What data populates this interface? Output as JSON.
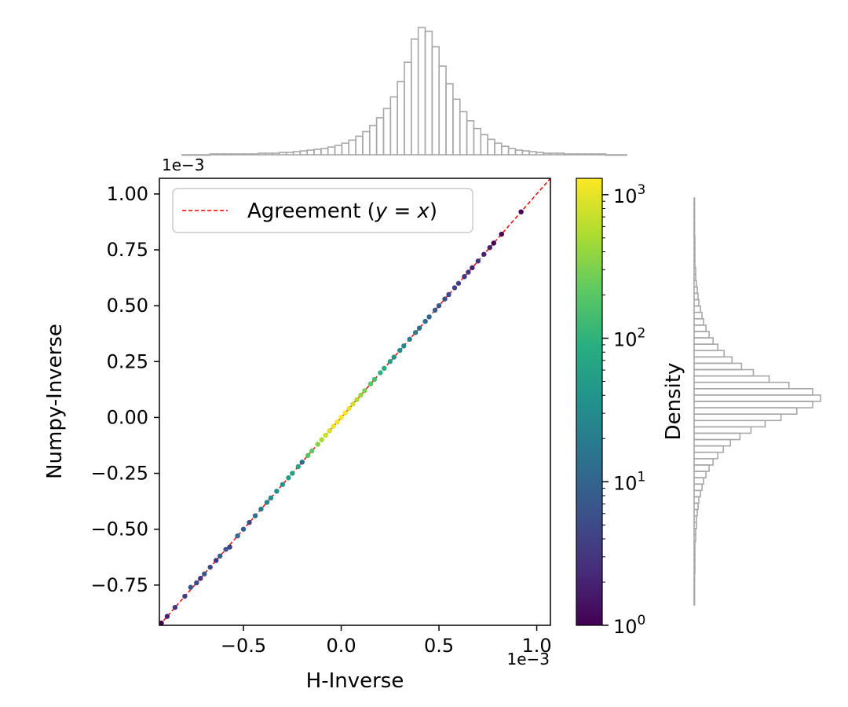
{
  "chart_data": {
    "type": "scatter",
    "xlabel": "H-Inverse",
    "ylabel": "Numpy-Inverse",
    "x_offset_label": "1e−3",
    "y_offset_label": "1e−3",
    "xlim": [
      -0.93,
      1.07
    ],
    "ylim": [
      -0.93,
      1.07
    ],
    "x_ticks": [
      -0.5,
      0.0,
      0.5,
      1.0
    ],
    "x_tick_labels": [
      "−0.5",
      "0.0",
      "0.5",
      "1.0"
    ],
    "y_ticks": [
      -0.75,
      -0.5,
      -0.25,
      0.0,
      0.25,
      0.5,
      0.75,
      1.0
    ],
    "y_tick_labels": [
      "−0.75",
      "−0.50",
      "−0.25",
      "0.00",
      "0.25",
      "0.50",
      "0.75",
      "1.00"
    ],
    "legend": {
      "label": "Agreement (y = x)",
      "label_prefix": "Agreement (",
      "label_var": "y",
      "label_eq": " = ",
      "label_var2": "x",
      "label_suffix": ")",
      "color": "#ff0000",
      "placement": "upper-left"
    },
    "reference_line": {
      "slope": 1,
      "intercept": 0,
      "style": "dashed",
      "color": "#ff0000"
    },
    "colorbar": {
      "label": "Density",
      "scale": "log",
      "range": [
        1,
        1300
      ],
      "colormap": "viridis",
      "ticks": [
        {
          "base": "10",
          "exp": "0",
          "value": 1
        },
        {
          "base": "10",
          "exp": "1",
          "value": 10
        },
        {
          "base": "10",
          "exp": "2",
          "value": 100
        },
        {
          "base": "10",
          "exp": "3",
          "value": 1000
        }
      ]
    },
    "points": [
      [
        -0.92,
        -0.92,
        1
      ],
      [
        -0.89,
        -0.89,
        2
      ],
      [
        -0.85,
        -0.85,
        3
      ],
      [
        -0.8,
        -0.8,
        4
      ],
      [
        -0.77,
        -0.76,
        6
      ],
      [
        -0.74,
        -0.74,
        5
      ],
      [
        -0.72,
        -0.72,
        3
      ],
      [
        -0.7,
        -0.7,
        8
      ],
      [
        -0.67,
        -0.67,
        5
      ],
      [
        -0.64,
        -0.64,
        3
      ],
      [
        -0.62,
        -0.62,
        9
      ],
      [
        -0.59,
        -0.59,
        6
      ],
      [
        -0.57,
        -0.58,
        4
      ],
      [
        -0.53,
        -0.53,
        12
      ],
      [
        -0.5,
        -0.5,
        8
      ],
      [
        -0.47,
        -0.47,
        5
      ],
      [
        -0.44,
        -0.44,
        15
      ],
      [
        -0.41,
        -0.41,
        20
      ],
      [
        -0.38,
        -0.38,
        25
      ],
      [
        -0.36,
        -0.36,
        30
      ],
      [
        -0.33,
        -0.33,
        35
      ],
      [
        -0.3,
        -0.3,
        40
      ],
      [
        -0.27,
        -0.27,
        55
      ],
      [
        -0.25,
        -0.25,
        60
      ],
      [
        -0.22,
        -0.22,
        70
      ],
      [
        -0.2,
        -0.2,
        12
      ],
      [
        -0.17,
        -0.17,
        180
      ],
      [
        -0.15,
        -0.15,
        220
      ],
      [
        -0.12,
        -0.12,
        350
      ],
      [
        -0.1,
        -0.1,
        500
      ],
      [
        -0.08,
        -0.08,
        700
      ],
      [
        -0.06,
        -0.06,
        900
      ],
      [
        -0.04,
        -0.04,
        1100
      ],
      [
        -0.02,
        -0.02,
        1250
      ],
      [
        0.0,
        0.0,
        1300
      ],
      [
        0.02,
        0.02,
        1200
      ],
      [
        0.04,
        0.04,
        1000
      ],
      [
        0.06,
        0.06,
        800
      ],
      [
        0.08,
        0.08,
        550
      ],
      [
        0.1,
        0.1,
        400
      ],
      [
        0.12,
        0.12,
        300
      ],
      [
        0.15,
        0.15,
        200
      ],
      [
        0.17,
        0.17,
        150
      ],
      [
        0.2,
        0.2,
        100
      ],
      [
        0.22,
        0.22,
        80
      ],
      [
        0.25,
        0.25,
        60
      ],
      [
        0.27,
        0.27,
        45
      ],
      [
        0.3,
        0.3,
        35
      ],
      [
        0.32,
        0.32,
        28
      ],
      [
        0.35,
        0.35,
        22
      ],
      [
        0.38,
        0.38,
        18
      ],
      [
        0.4,
        0.4,
        14
      ],
      [
        0.43,
        0.43,
        12
      ],
      [
        0.45,
        0.45,
        10
      ],
      [
        0.48,
        0.48,
        8
      ],
      [
        0.5,
        0.5,
        7
      ],
      [
        0.53,
        0.53,
        6
      ],
      [
        0.55,
        0.55,
        5
      ],
      [
        0.58,
        0.58,
        4
      ],
      [
        0.6,
        0.6,
        4
      ],
      [
        0.63,
        0.63,
        3
      ],
      [
        0.65,
        0.65,
        3
      ],
      [
        0.67,
        0.67,
        2
      ],
      [
        0.7,
        0.7,
        3
      ],
      [
        0.73,
        0.73,
        2
      ],
      [
        0.76,
        0.76,
        2
      ],
      [
        0.78,
        0.78,
        1
      ],
      [
        0.82,
        0.82,
        1
      ],
      [
        0.92,
        0.92,
        1
      ]
    ],
    "x_hist": [
      0,
      0,
      0,
      0,
      1,
      1,
      1,
      1,
      1,
      1,
      1,
      2,
      2,
      2,
      3,
      3,
      4,
      5,
      6,
      7,
      8,
      10,
      12,
      15,
      19,
      24,
      30,
      38,
      48,
      60,
      75,
      95,
      120,
      150,
      165,
      160,
      140,
      115,
      92,
      72,
      56,
      44,
      34,
      26,
      20,
      15,
      11,
      8,
      6,
      5,
      4,
      3,
      2,
      2,
      2,
      1,
      1,
      1,
      1,
      1,
      1,
      0,
      0,
      0
    ],
    "y_hist": [
      0,
      0,
      0,
      0,
      0,
      0,
      1,
      1,
      1,
      1,
      1,
      2,
      2,
      3,
      4,
      5,
      6,
      8,
      10,
      12,
      15,
      19,
      24,
      30,
      38,
      48,
      60,
      75,
      95,
      120,
      150,
      160,
      150,
      130,
      110,
      90,
      72,
      58,
      46,
      37,
      30,
      24,
      19,
      15,
      12,
      10,
      8,
      6,
      5,
      4,
      3,
      3,
      2,
      2,
      1,
      1,
      1,
      1,
      1,
      0,
      0,
      0,
      0,
      0
    ]
  }
}
